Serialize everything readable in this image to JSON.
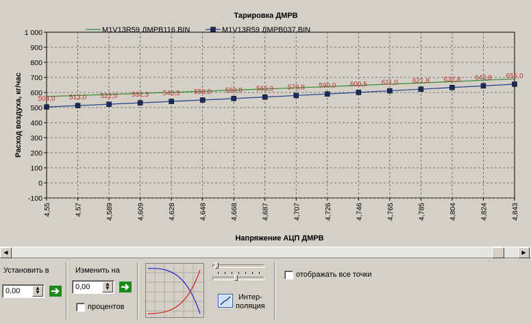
{
  "chart_data": {
    "type": "line",
    "title": "Тарировка ДМРВ",
    "xlabel": "Напряжение АЦП ДМРВ",
    "ylabel": "Расход воздуха, кг/час",
    "ylim": [
      -100,
      1000
    ],
    "yticks": [
      "1 000",
      "900",
      "800",
      "700",
      "600",
      "500",
      "400",
      "300",
      "200",
      "100",
      "0",
      "-100"
    ],
    "categories": [
      "4,55",
      "4,57",
      "4,589",
      "4,609",
      "4,628",
      "4,648",
      "4,668",
      "4,687",
      "4,707",
      "4,726",
      "4,746",
      "4,765",
      "4,785",
      "4,804",
      "4,824",
      "4,843"
    ],
    "series": [
      {
        "name": "M1V13R59 ДМРВ116.BIN",
        "color": "#2e8b2e",
        "marker": "none",
        "values": [
          573,
          580,
          587,
          594,
          601,
          608,
          616,
          623,
          631,
          639,
          647,
          655,
          663,
          672,
          681,
          690
        ]
      },
      {
        "name": "M1V13R59 ДМРВ037.BIN",
        "color": "#1f3f8f",
        "marker": "square",
        "values": [
          504.0,
          513.0,
          522.0,
          531.3,
          540.5,
          550.0,
          559.8,
          569.9,
          579.8,
          590.0,
          600.5,
          611.0,
          621.8,
          632.8,
          643.8,
          655.0
        ],
        "labels": [
          "504,0",
          "513,0",
          "522,0",
          "531,3",
          "540,5",
          "550,0",
          "559,8",
          "569,9",
          "579,8",
          "590,0",
          "600,5",
          "611,0",
          "621,8",
          "632,8",
          "643,8",
          "655,0"
        ]
      }
    ],
    "grid": true,
    "legend": "top"
  },
  "controls": {
    "set_to_label": "Установить в",
    "set_to_value": "0,00",
    "change_by_label": "Изменить на",
    "change_by_value": "0,00",
    "percent_label": "процентов",
    "interp_label_1": "Интер-",
    "interp_label_2": "поляция",
    "show_all_points_label": "отображать все точки"
  },
  "colors": {
    "accent_green": "#1d8a1d",
    "curve_red": "#d02020",
    "curve_blue": "#2020d0"
  }
}
